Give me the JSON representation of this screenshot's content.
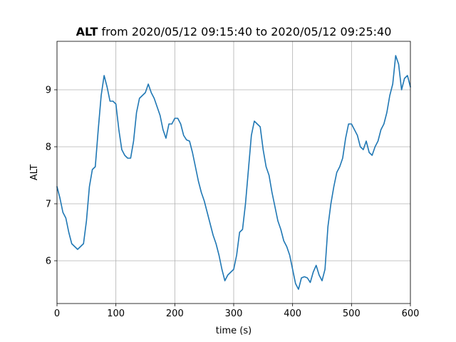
{
  "chart_data": {
    "type": "line",
    "title_bold": "ALT",
    "title_rest": " from 2020/05/12 09:15:40 to 2020/05/12 09:25:40",
    "xlabel": "time (s)",
    "ylabel": "ALT",
    "xlim": [
      0,
      600
    ],
    "ylim": [
      5.25,
      9.85
    ],
    "xticks": [
      0,
      100,
      200,
      300,
      400,
      500,
      600
    ],
    "yticks": [
      6,
      7,
      8,
      9
    ],
    "grid": true,
    "line_color": "#1f77b4",
    "series": [
      {
        "x": [
          0,
          5,
          10,
          15,
          20,
          25,
          30,
          35,
          40,
          45,
          50,
          55,
          60,
          65,
          70,
          75,
          80,
          85,
          90,
          95,
          100,
          105,
          110,
          115,
          120,
          125,
          130,
          135,
          140,
          145,
          150,
          155,
          160,
          165,
          170,
          175,
          180,
          185,
          190,
          195,
          200,
          205,
          210,
          215,
          220,
          225,
          230,
          235,
          240,
          245,
          250,
          255,
          260,
          265,
          270,
          275,
          280,
          285,
          290,
          295,
          300,
          305,
          310,
          315,
          320,
          325,
          330,
          335,
          340,
          345,
          350,
          355,
          360,
          365,
          370,
          375,
          380,
          385,
          390,
          395,
          400,
          405,
          410,
          415,
          420,
          425,
          430,
          435,
          440,
          445,
          450,
          455,
          460,
          465,
          470,
          475,
          480,
          485,
          490,
          495,
          500,
          505,
          510,
          515,
          520,
          525,
          530,
          535,
          540,
          545,
          550,
          555,
          560,
          565,
          570,
          575,
          580,
          585,
          590,
          595,
          600
        ],
        "y": [
          7.3,
          7.1,
          6.85,
          6.75,
          6.5,
          6.3,
          6.25,
          6.2,
          6.25,
          6.3,
          6.7,
          7.3,
          7.6,
          7.65,
          8.3,
          8.9,
          9.25,
          9.05,
          8.8,
          8.8,
          8.75,
          8.3,
          7.95,
          7.85,
          7.8,
          7.8,
          8.1,
          8.6,
          8.85,
          8.9,
          8.95,
          9.1,
          8.95,
          8.85,
          8.7,
          8.55,
          8.3,
          8.15,
          8.4,
          8.4,
          8.5,
          8.5,
          8.4,
          8.2,
          8.12,
          8.1,
          7.9,
          7.65,
          7.4,
          7.2,
          7.05,
          6.85,
          6.65,
          6.45,
          6.3,
          6.1,
          5.85,
          5.65,
          5.75,
          5.8,
          5.85,
          6.1,
          6.5,
          6.55,
          7.0,
          7.6,
          8.2,
          8.45,
          8.4,
          8.35,
          7.95,
          7.65,
          7.5,
          7.2,
          6.95,
          6.7,
          6.55,
          6.35,
          6.25,
          6.1,
          5.85,
          5.6,
          5.5,
          5.7,
          5.72,
          5.7,
          5.62,
          5.8,
          5.92,
          5.75,
          5.65,
          5.85,
          6.6,
          7.0,
          7.3,
          7.55,
          7.65,
          7.8,
          8.15,
          8.4,
          8.4,
          8.3,
          8.2,
          8.0,
          7.95,
          8.1,
          7.9,
          7.85,
          8.0,
          8.1,
          8.3,
          8.4,
          8.6,
          8.9,
          9.1,
          9.6,
          9.45,
          9.0,
          9.2,
          9.25,
          9.05
        ]
      }
    ]
  }
}
